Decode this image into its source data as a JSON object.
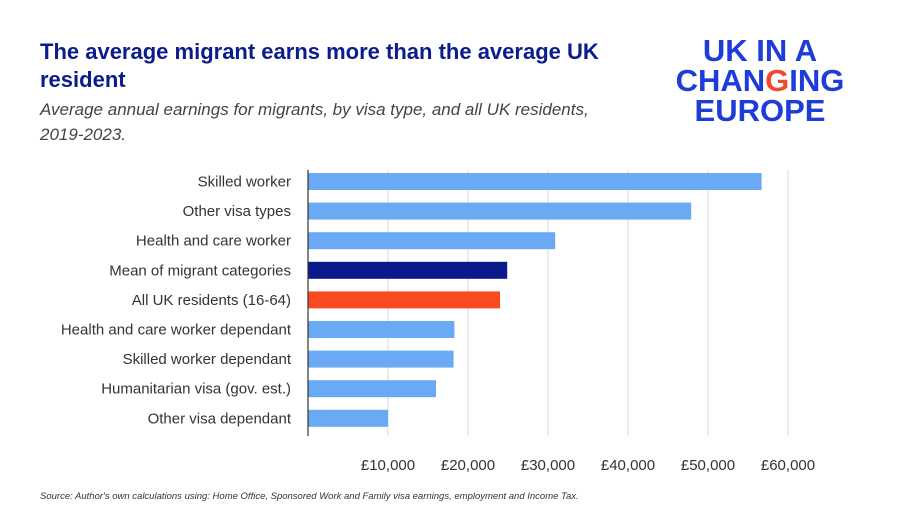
{
  "header": {
    "title": "The average migrant earns more than the average UK resident",
    "subtitle": "Average annual  earnings for migrants, by visa type, and all UK residents, 2019-2023."
  },
  "logo": {
    "line1": "UK IN A",
    "line2_pre": "CHAN",
    "line2_accent": "G",
    "line2_post": "ING",
    "line3": "EUROPE"
  },
  "source": "Source: Author's own calculations using: Home Office, Sponsored Work and Family visa earnings, employment and Income Tax.",
  "colors": {
    "default_bar": "#6aaaf5",
    "mean_bar": "#0a1a8a",
    "uk_bar": "#fa4a22",
    "gridline": "#d8d8d8",
    "axis": "#333333"
  },
  "chart_data": {
    "type": "bar",
    "orientation": "horizontal",
    "categories": [
      "Skilled worker",
      "Other visa types",
      "Health and care worker",
      "Mean of migrant categories",
      "All UK residents (16-64)",
      "Health and care worker dependant",
      "Skilled worker dependant",
      "Humanitarian visa (gov. est.)",
      "Other visa dependant"
    ],
    "values": [
      56700,
      47900,
      30900,
      24900,
      24000,
      18300,
      18200,
      16000,
      10000
    ],
    "bar_colors": [
      "#6aaaf5",
      "#6aaaf5",
      "#6aaaf5",
      "#0a1a8a",
      "#fa4a22",
      "#6aaaf5",
      "#6aaaf5",
      "#6aaaf5",
      "#6aaaf5"
    ],
    "xlim": [
      0,
      62000
    ],
    "xticks": [
      10000,
      20000,
      30000,
      40000,
      50000,
      60000
    ],
    "xtick_labels": [
      "£10,000",
      "£20,000",
      "£30,000",
      "£40,000",
      "£50,000",
      "£60,000"
    ],
    "grid": "vertical",
    "legend": "none"
  }
}
